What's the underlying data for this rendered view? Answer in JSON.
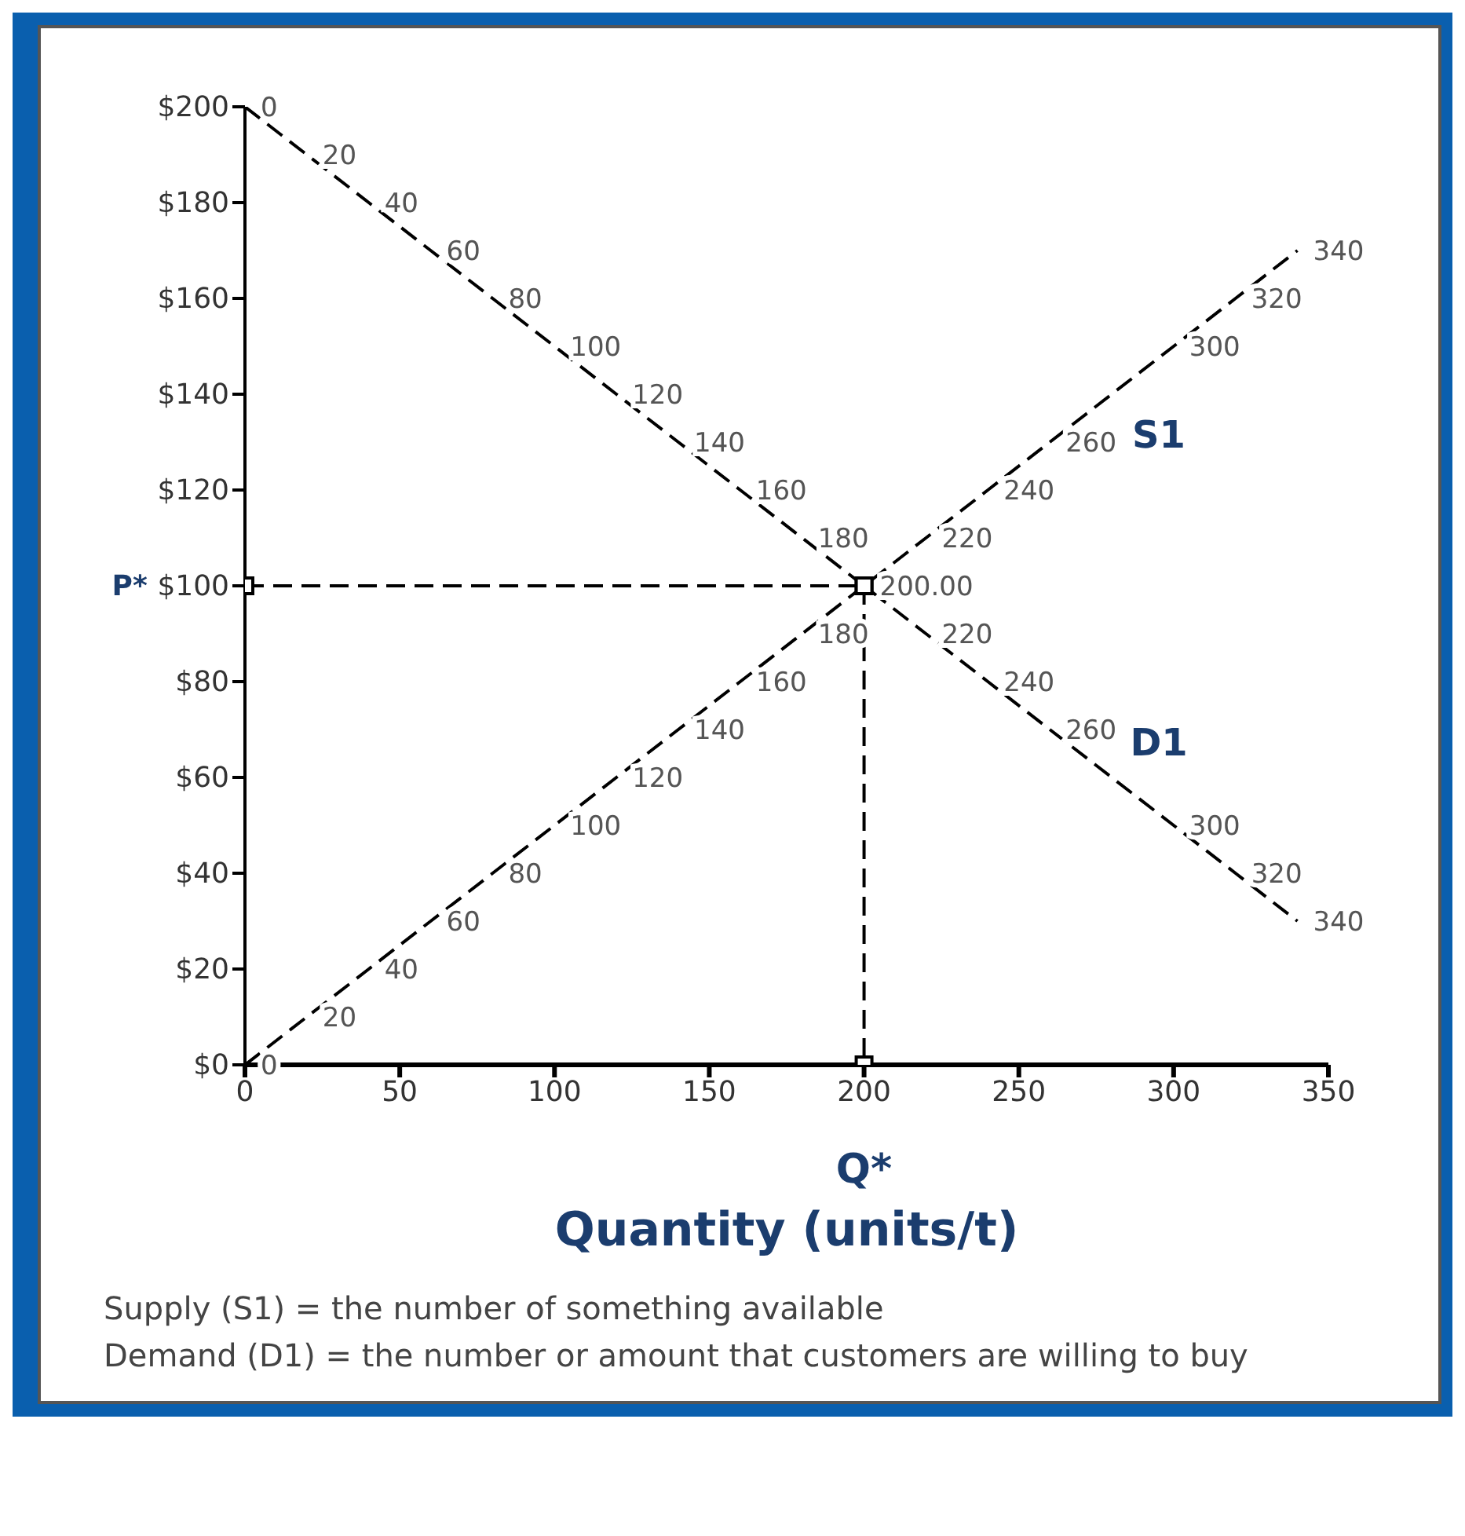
{
  "chart_data": {
    "type": "line",
    "xlabel": "Quantity (units/t)",
    "xlim": [
      0,
      350
    ],
    "xticks": [
      0,
      50,
      100,
      150,
      200,
      250,
      300,
      350
    ],
    "ylim": [
      0,
      200
    ],
    "yticks": [
      {
        "value": 0,
        "label": "$0"
      },
      {
        "value": 20,
        "label": "$20"
      },
      {
        "value": 40,
        "label": "$40"
      },
      {
        "value": 60,
        "label": "$60"
      },
      {
        "value": 80,
        "label": "$80"
      },
      {
        "value": 100,
        "label": "P* $100"
      },
      {
        "value": 120,
        "label": "$120"
      },
      {
        "value": 140,
        "label": "$140"
      },
      {
        "value": 160,
        "label": "$160"
      },
      {
        "value": 180,
        "label": "$180"
      },
      {
        "value": 200,
        "label": "$200"
      }
    ],
    "line_style": "dashed",
    "marker": "none",
    "series": [
      {
        "name": "S1",
        "color": "#000000",
        "x": [
          0,
          20,
          40,
          60,
          80,
          100,
          120,
          140,
          160,
          180,
          200,
          220,
          240,
          260,
          280,
          300,
          320,
          340
        ],
        "values": [
          0,
          10,
          20,
          30,
          40,
          50,
          60,
          70,
          80,
          90,
          100,
          110,
          120,
          130,
          140,
          150,
          160,
          170
        ]
      },
      {
        "name": "D1",
        "color": "#000000",
        "x": [
          0,
          20,
          40,
          60,
          80,
          100,
          120,
          140,
          160,
          180,
          200,
          220,
          240,
          260,
          280,
          300,
          320,
          340
        ],
        "values": [
          200,
          190,
          180,
          170,
          160,
          150,
          140,
          130,
          120,
          110,
          100,
          90,
          80,
          70,
          60,
          50,
          40,
          30
        ]
      },
      {
        "type": "line",
        "color": "#000000",
        "x": [
          0,
          200
        ],
        "values": [
          100,
          100
        ],
        "marker": "square",
        "line_style": "dashed"
      },
      {
        "type": "line",
        "color": "#000000",
        "x": [
          200,
          200
        ],
        "values": [
          100,
          0
        ],
        "marker": "square",
        "line_style": "dashed"
      }
    ],
    "annotations": [
      {
        "text": "Q*",
        "x": 200,
        "y": 0
      },
      {
        "text": "0",
        "x": 0,
        "y": 0
      },
      {
        "text": "20",
        "x": 20,
        "y": 10
      },
      {
        "text": "40",
        "x": 40,
        "y": 20
      },
      {
        "text": "60",
        "x": 60,
        "y": 30
      },
      {
        "text": "80",
        "x": 80,
        "y": 40
      },
      {
        "text": "100",
        "x": 100,
        "y": 50
      },
      {
        "text": "120",
        "x": 120,
        "y": 60
      },
      {
        "text": "140",
        "x": 140,
        "y": 70
      },
      {
        "text": "160",
        "x": 160,
        "y": 80
      },
      {
        "text": "180",
        "x": 180,
        "y": 90
      },
      {
        "text": "220",
        "x": 220,
        "y": 110
      },
      {
        "text": "240",
        "x": 240,
        "y": 120
      },
      {
        "text": "260",
        "x": 260,
        "y": 130
      },
      {
        "text": "300",
        "x": 300,
        "y": 150
      },
      {
        "text": "320",
        "x": 320,
        "y": 160
      },
      {
        "text": "340",
        "x": 340,
        "y": 170
      },
      {
        "text": "0",
        "x": 0,
        "y": 200
      },
      {
        "text": "20",
        "x": 20,
        "y": 190
      },
      {
        "text": "40",
        "x": 40,
        "y": 180
      },
      {
        "text": "60",
        "x": 60,
        "y": 170
      },
      {
        "text": "80",
        "x": 80,
        "y": 160
      },
      {
        "text": "100",
        "x": 100,
        "y": 150
      },
      {
        "text": "120",
        "x": 120,
        "y": 140
      },
      {
        "text": "140",
        "x": 140,
        "y": 130
      },
      {
        "text": "160",
        "x": 160,
        "y": 120
      },
      {
        "text": "180",
        "x": 180,
        "y": 110
      },
      {
        "text": "200.00",
        "x": 200,
        "y": 100
      },
      {
        "text": "220",
        "x": 220,
        "y": 90
      },
      {
        "text": "240",
        "x": 240,
        "y": 80
      },
      {
        "text": "260",
        "x": 260,
        "y": 70
      },
      {
        "text": "300",
        "x": 300,
        "y": 50
      },
      {
        "text": "320",
        "x": 320,
        "y": 40
      },
      {
        "text": "340",
        "x": 340,
        "y": 30
      },
      "Supply (S1) = the number of something available",
      "Demand (D1) = the number or amount that customers are willing to buy"
    ]
  }
}
